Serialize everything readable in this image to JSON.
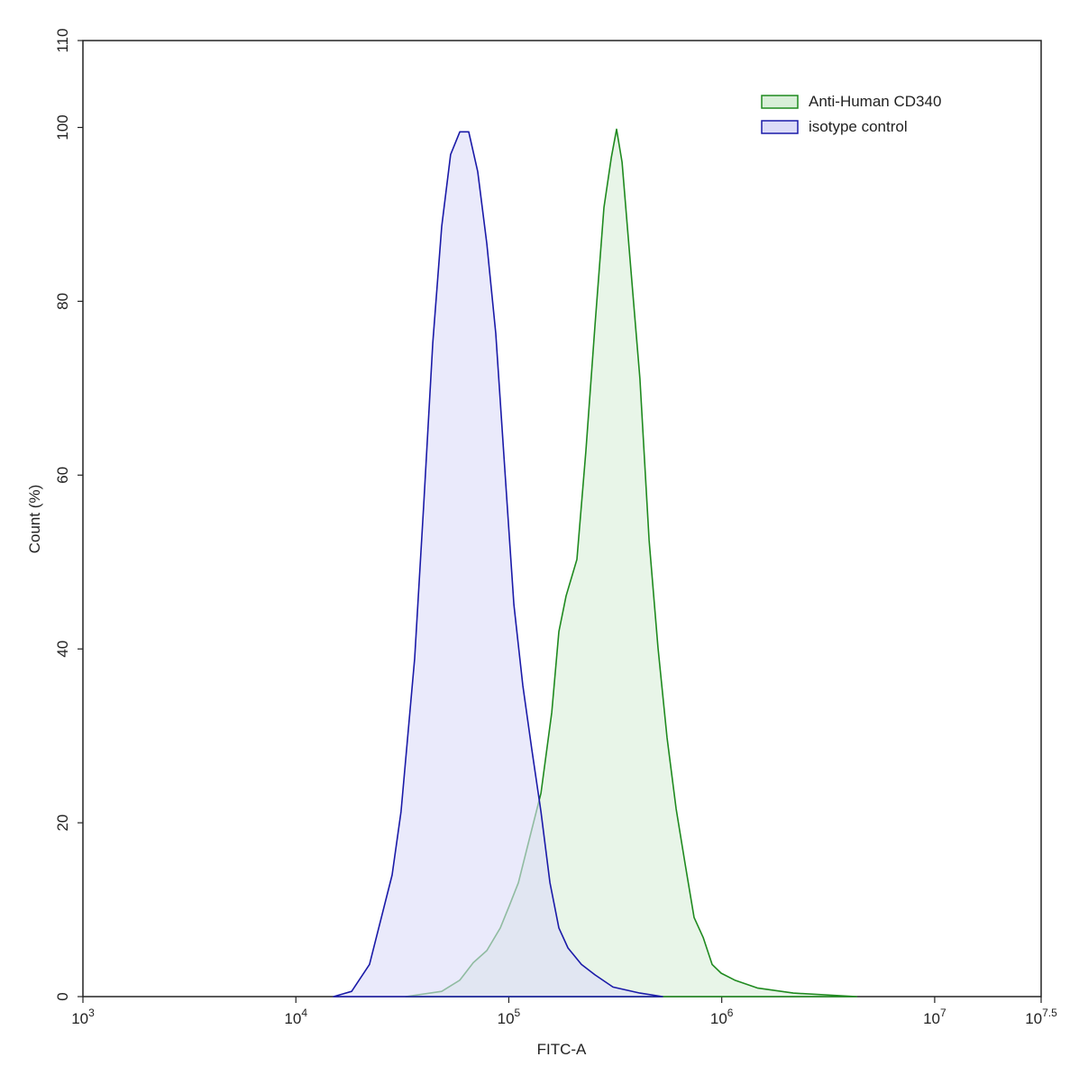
{
  "chart_data": {
    "type": "histogram-overlay",
    "x_label": "FITC-A",
    "y_label": "Count  (%)",
    "x_scale": "log",
    "xlim": [
      1000,
      31622776.6
    ],
    "xticks": [
      {
        "value": 1000,
        "label": "10",
        "exp": "3"
      },
      {
        "value": 10000,
        "label": "10",
        "exp": "4"
      },
      {
        "value": 100000,
        "label": "10",
        "exp": "5"
      },
      {
        "value": 1000000,
        "label": "10",
        "exp": "6"
      },
      {
        "value": 10000000,
        "label": "10",
        "exp": "7"
      },
      {
        "value": 31622776.6,
        "label": "10",
        "exp": "7.5"
      }
    ],
    "ylim": [
      0,
      110
    ],
    "yticks": [
      0,
      20,
      40,
      60,
      80,
      100,
      110
    ],
    "legend": "upper right",
    "series": [
      {
        "name": "Anti-Human CD340",
        "color": "#1f8a1f",
        "fill": "#d8efd8",
        "x": [
          32810,
          48420,
          58880,
          68080,
          78890,
          91200,
          100700,
          110900,
          122200,
          141600,
          159200,
          171800,
          185800,
          208900,
          230100,
          254100,
          279900,
          302700,
          320600,
          340400,
          375000,
          413000,
          456000,
          502300,
          553400,
          610900,
          673000,
          741300,
          818400,
          901500,
          993100,
          1151000,
          1469000,
          2168000,
          4295000
        ],
        "values": [
          0,
          0.6,
          1.9,
          3.9,
          5.3,
          7.9,
          10.5,
          13.1,
          17.2,
          23.4,
          32.7,
          42.0,
          46.1,
          50.3,
          62.7,
          77.3,
          90.8,
          96.5,
          99.8,
          96.0,
          83.5,
          71.1,
          52.5,
          40.1,
          29.8,
          21.6,
          15.3,
          9.1,
          6.8,
          3.7,
          2.7,
          1.9,
          1.0,
          0.4,
          0
        ]
      },
      {
        "name": "isotype control",
        "color": "#1a1aa8",
        "fill": "#dcdcf8",
        "x": [
          15030,
          18280,
          22180,
          28310,
          31190,
          36140,
          39810,
          43950,
          48420,
          53330,
          58880,
          64860,
          71450,
          78890,
          86900,
          95720,
          105700,
          116400,
          128200,
          141600,
          156000,
          171800,
          189700,
          219300,
          254100,
          308300,
          413000,
          527200
        ],
        "values": [
          0,
          0.6,
          3.7,
          14.0,
          21.3,
          38.9,
          56.5,
          75.2,
          88.6,
          96.9,
          99.5,
          99.5,
          94.9,
          86.6,
          76.3,
          60.7,
          45.1,
          35.8,
          28.5,
          21.3,
          13.1,
          7.9,
          5.6,
          3.7,
          2.5,
          1.1,
          0.4,
          0
        ]
      }
    ]
  }
}
